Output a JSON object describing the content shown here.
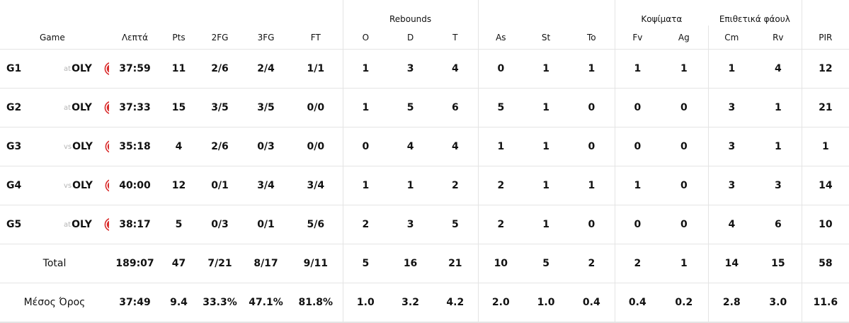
{
  "header": {
    "groups": {
      "rebounds": "Rebounds",
      "blocks": "Κοψίματα",
      "fouls": "Επιθετικά φάουλ"
    },
    "columns": {
      "game": "Game",
      "minutes": "Λεπτά",
      "pts": "Pts",
      "fg2": "2FG",
      "fg3": "3FG",
      "ft": "FT",
      "o": "O",
      "d": "D",
      "t": "T",
      "as": "As",
      "st": "St",
      "to": "To",
      "fv": "Fv",
      "ag": "Ag",
      "cm": "Cm",
      "rv": "Rv",
      "pir": "PIR"
    }
  },
  "games": [
    {
      "id": "G1",
      "venue": "at",
      "opponent": "OLY",
      "minutes": "37:59",
      "pts": "11",
      "fg2": "2/6",
      "fg3": "2/4",
      "ft": "1/1",
      "o": "1",
      "d": "3",
      "t": "4",
      "as": "0",
      "st": "1",
      "to": "1",
      "fv": "1",
      "ag": "1",
      "cm": "1",
      "rv": "4",
      "pir": "12"
    },
    {
      "id": "G2",
      "venue": "at",
      "opponent": "OLY",
      "minutes": "37:33",
      "pts": "15",
      "fg2": "3/5",
      "fg3": "3/5",
      "ft": "0/0",
      "o": "1",
      "d": "5",
      "t": "6",
      "as": "5",
      "st": "1",
      "to": "0",
      "fv": "0",
      "ag": "0",
      "cm": "3",
      "rv": "1",
      "pir": "21"
    },
    {
      "id": "G3",
      "venue": "vs",
      "opponent": "OLY",
      "minutes": "35:18",
      "pts": "4",
      "fg2": "2/6",
      "fg3": "0/3",
      "ft": "0/0",
      "o": "0",
      "d": "4",
      "t": "4",
      "as": "1",
      "st": "1",
      "to": "0",
      "fv": "0",
      "ag": "0",
      "cm": "3",
      "rv": "1",
      "pir": "1"
    },
    {
      "id": "G4",
      "venue": "vs",
      "opponent": "OLY",
      "minutes": "40:00",
      "pts": "12",
      "fg2": "0/1",
      "fg3": "3/4",
      "ft": "3/4",
      "o": "1",
      "d": "1",
      "t": "2",
      "as": "2",
      "st": "1",
      "to": "1",
      "fv": "1",
      "ag": "0",
      "cm": "3",
      "rv": "3",
      "pir": "14"
    },
    {
      "id": "G5",
      "venue": "at",
      "opponent": "OLY",
      "minutes": "38:17",
      "pts": "5",
      "fg2": "0/3",
      "fg3": "0/1",
      "ft": "5/6",
      "o": "2",
      "d": "3",
      "t": "5",
      "as": "2",
      "st": "1",
      "to": "0",
      "fv": "0",
      "ag": "0",
      "cm": "4",
      "rv": "6",
      "pir": "10"
    }
  ],
  "total": {
    "label": "Total",
    "minutes": "189:07",
    "pts": "47",
    "fg2": "7/21",
    "fg3": "8/17",
    "ft": "9/11",
    "o": "5",
    "d": "16",
    "t": "21",
    "as": "10",
    "st": "5",
    "to": "2",
    "fv": "2",
    "ag": "1",
    "cm": "14",
    "rv": "15",
    "pir": "58"
  },
  "average": {
    "label": "Μέσος Όρος",
    "minutes": "37:49",
    "pts": "9.4",
    "fg2": "33.3%",
    "fg3": "47.1%",
    "ft": "81.8%",
    "o": "1.0",
    "d": "3.2",
    "t": "4.2",
    "as": "2.0",
    "st": "1.0",
    "to": "0.4",
    "fv": "0.4",
    "ag": "0.2",
    "cm": "2.8",
    "rv": "3.0",
    "pir": "11.6"
  },
  "colors": {
    "logo_red": "#d92b2b",
    "venue_gray": "#b5b5b5",
    "divider": "#e4e4e4"
  },
  "icons": {
    "team_logo": "olympiacos-logo-icon"
  }
}
